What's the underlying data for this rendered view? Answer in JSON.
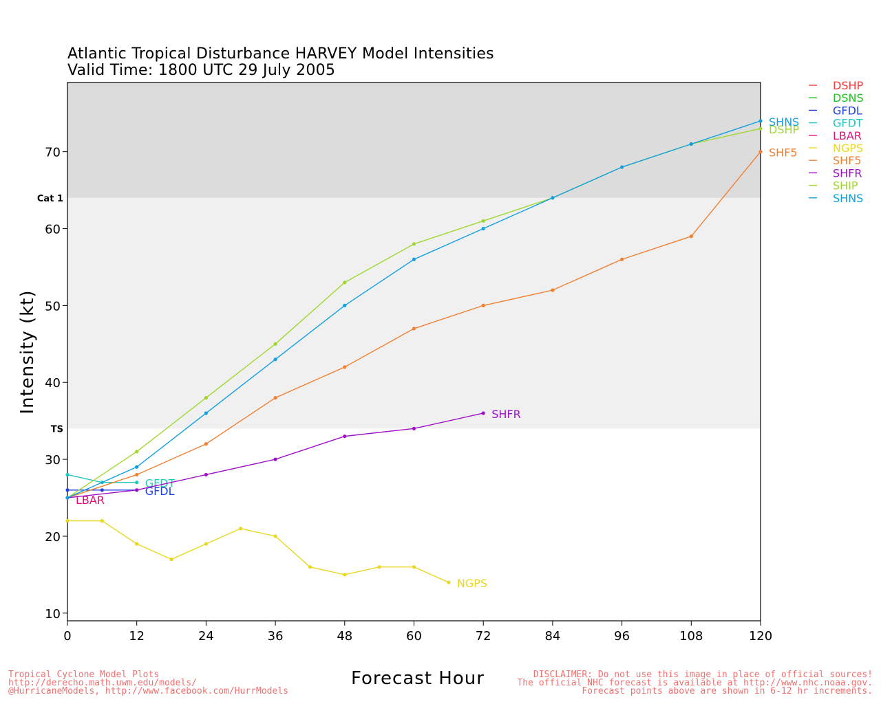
{
  "title_line1": "Atlantic Tropical Disturbance HARVEY Model Intensities",
  "title_line2": "Valid Time: 1800 UTC 29 July 2005",
  "footer_left": [
    "Tropical Cyclone Model Plots",
    "http://derecho.math.uwm.edu/models/",
    "@HurricaneModels, http://www.facebook.com/HurrModels"
  ],
  "footer_right": [
    "DISCLAIMER: Do not use this image in place of official sources!",
    "The official NHC forecast is available at http://www.nhc.noaa.gov.",
    "Forecast points above are shown in 6-12 hr increments."
  ],
  "chart_data": {
    "type": "line",
    "xlabel": "Forecast Hour",
    "ylabel": "Intensity (kt)",
    "xlim": [
      0,
      120
    ],
    "ylim": [
      9,
      79
    ],
    "x_ticks": [
      0,
      12,
      24,
      36,
      48,
      60,
      72,
      84,
      96,
      108,
      120
    ],
    "y_ticks": [
      10,
      20,
      30,
      40,
      50,
      60,
      70
    ],
    "bands": [
      {
        "label": "TS",
        "from": 34,
        "to": 64,
        "color": "#f0f0f0"
      },
      {
        "label": "Cat 1",
        "from": 64,
        "to": 79,
        "color": "#dcdcdc"
      }
    ],
    "legend_position": "right",
    "series": [
      {
        "name": "DSHP",
        "color": "#f03c3c",
        "points": [],
        "end_label": "DSHP",
        "label_offset": [
          0,
          0
        ]
      },
      {
        "name": "DSNS",
        "color": "#22c022",
        "points": [],
        "end_label": "DSNS",
        "label_offset": [
          0,
          -12
        ]
      },
      {
        "name": "GFDL",
        "color": "#2040e0",
        "points": [
          [
            0,
            26
          ],
          [
            6,
            26
          ],
          [
            12,
            26
          ]
        ],
        "end_label": "GFDL",
        "label_offset": [
          0,
          0
        ]
      },
      {
        "name": "GFDT",
        "color": "#20c8c0",
        "points": [
          [
            0,
            28
          ],
          [
            6,
            27
          ],
          [
            12,
            27
          ]
        ],
        "end_label": "GFDT",
        "label_offset": [
          0,
          0
        ]
      },
      {
        "name": "LBAR",
        "color": "#e0107a",
        "points": [
          [
            0,
            25
          ]
        ],
        "end_label": "LBAR",
        "label_offset": [
          0,
          0
        ]
      },
      {
        "name": "NGPS",
        "color": "#e8d820",
        "points": [
          [
            0,
            22
          ],
          [
            6,
            22
          ],
          [
            12,
            19
          ],
          [
            18,
            17
          ],
          [
            24,
            19
          ],
          [
            30,
            21
          ],
          [
            36,
            20
          ],
          [
            42,
            16
          ],
          [
            48,
            15
          ],
          [
            54,
            16
          ],
          [
            60,
            16
          ],
          [
            66,
            14
          ]
        ],
        "end_label": "NGPS",
        "label_offset": [
          0,
          0
        ]
      },
      {
        "name": "SHF5",
        "color": "#f08030",
        "points": [
          [
            0,
            25
          ],
          [
            12,
            28
          ],
          [
            24,
            32
          ],
          [
            36,
            38
          ],
          [
            48,
            42
          ],
          [
            60,
            47
          ],
          [
            72,
            50
          ],
          [
            84,
            52
          ],
          [
            96,
            56
          ],
          [
            108,
            59
          ],
          [
            120,
            70
          ]
        ],
        "end_label": "SHF5",
        "label_offset": [
          0,
          0
        ]
      },
      {
        "name": "SHFR",
        "color": "#a010c8",
        "points": [
          [
            0,
            25
          ],
          [
            12,
            26
          ],
          [
            24,
            28
          ],
          [
            36,
            30
          ],
          [
            48,
            33
          ],
          [
            60,
            34
          ],
          [
            72,
            36
          ]
        ],
        "end_label": "SHFR",
        "label_offset": [
          0,
          0
        ]
      },
      {
        "name": "SHIP",
        "color": "#a0d830",
        "points": [
          [
            0,
            25
          ],
          [
            12,
            31
          ],
          [
            24,
            38
          ],
          [
            36,
            45
          ],
          [
            48,
            53
          ],
          [
            60,
            58
          ],
          [
            72,
            61
          ],
          [
            84,
            64
          ],
          [
            96,
            68
          ],
          [
            108,
            71
          ],
          [
            120,
            73
          ]
        ],
        "end_label": "DSHP",
        "label_offset": [
          0,
          0
        ]
      },
      {
        "name": "SHNS",
        "color": "#10a0e0",
        "points": [
          [
            0,
            25
          ],
          [
            12,
            29
          ],
          [
            24,
            36
          ],
          [
            36,
            43
          ],
          [
            48,
            50
          ],
          [
            60,
            56
          ],
          [
            72,
            60
          ],
          [
            84,
            64
          ],
          [
            96,
            68
          ],
          [
            108,
            71
          ],
          [
            120,
            74
          ]
        ],
        "end_label": "SHNS",
        "label_offset": [
          0,
          0
        ]
      }
    ]
  }
}
